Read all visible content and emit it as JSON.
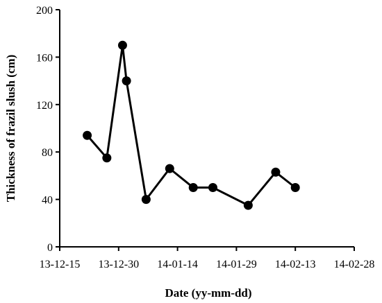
{
  "chart_data": {
    "type": "line",
    "title": "",
    "xlabel": "Date (yy-mm-dd)",
    "ylabel": "Thickness of frazil slush (cm)",
    "x_tick_labels": [
      "13-12-15",
      "13-12-30",
      "14-01-14",
      "14-01-29",
      "14-02-13",
      "14-02-28"
    ],
    "x_ticks": [
      "2013-12-15",
      "2013-12-30",
      "2014-01-14",
      "2014-01-29",
      "2014-02-13",
      "2014-02-28"
    ],
    "y_ticks": [
      0,
      40,
      80,
      120,
      160,
      200
    ],
    "xlim": [
      "2013-12-15",
      "2014-02-28"
    ],
    "ylim": [
      0,
      200
    ],
    "grid": false,
    "legend": "none",
    "line_color": "#000000",
    "marker": "filled-circle",
    "series": [
      {
        "points": [
          {
            "x": "2013-12-22",
            "y": 94
          },
          {
            "x": "2013-12-27",
            "y": 75
          },
          {
            "x": "2013-12-31",
            "y": 170
          },
          {
            "x": "2014-01-01",
            "y": 140
          },
          {
            "x": "2014-01-06",
            "y": 40
          },
          {
            "x": "2014-01-12",
            "y": 66
          },
          {
            "x": "2014-01-18",
            "y": 50
          },
          {
            "x": "2014-01-23",
            "y": 50
          },
          {
            "x": "2014-02-01",
            "y": 35
          },
          {
            "x": "2014-02-08",
            "y": 63
          },
          {
            "x": "2014-02-13",
            "y": 50
          }
        ]
      }
    ]
  }
}
